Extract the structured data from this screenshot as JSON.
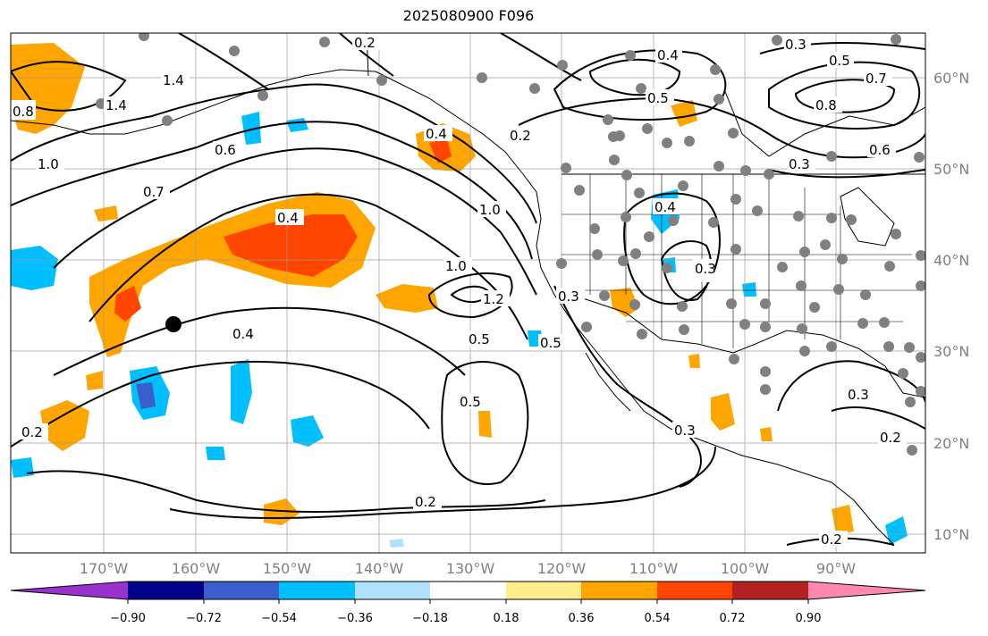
{
  "title": "2025080900 F096",
  "lon_labels": [
    "170°W",
    "160°W",
    "150°W",
    "140°W",
    "130°W",
    "120°W",
    "110°W",
    "100°W",
    "90°W"
  ],
  "lat_labels": [
    "60°N",
    "50°N",
    "40°N",
    "30°N",
    "20°N",
    "10°N"
  ],
  "colorbar": {
    "colors": [
      "#9932cc",
      "#00008b",
      "#3a5fcd",
      "#00bfff",
      "#b0e2ff",
      "#ffffff",
      "#ffec8b",
      "#ffa500",
      "#ff4500",
      "#b22222",
      "#ff88b0"
    ],
    "ticks": [
      "−0.90",
      "−0.72",
      "−0.54",
      "−0.36",
      "−0.18",
      "0.18",
      "0.36",
      "0.54",
      "0.72",
      "0.90"
    ]
  },
  "contour_labels": [
    "0.2",
    "0.3",
    "0.5",
    "0.4",
    "0.8",
    "1.4",
    "1.0",
    "0.6",
    "0.7",
    "0.4",
    "0.2",
    "1.0",
    "1.2",
    "0.5",
    "0.3",
    "0.2",
    "0.5",
    "0.4",
    "0.8",
    "0.7",
    "0.5",
    "0.3",
    "0.6",
    "0.3",
    "0.3",
    "0.4",
    "0.3",
    "0.2",
    "0.2",
    "0.5",
    "0.4",
    "1.0",
    "1.4",
    "0.2"
  ],
  "marker": "black-dot"
}
